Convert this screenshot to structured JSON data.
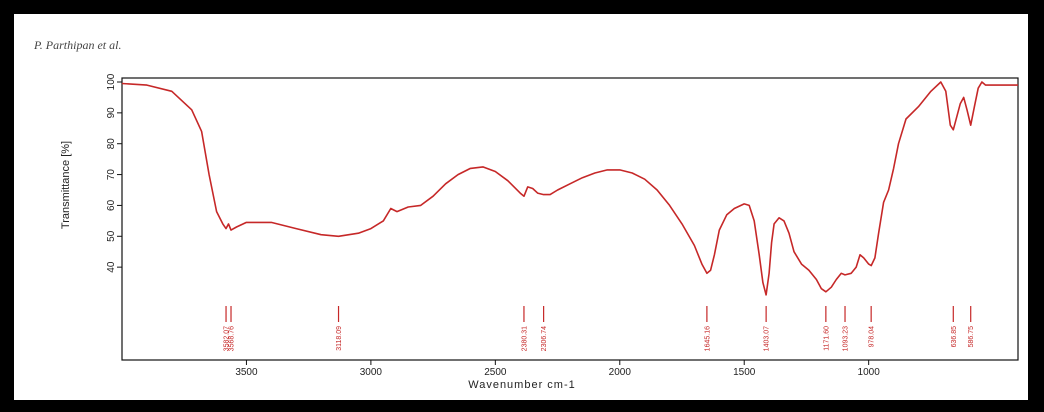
{
  "header": {
    "author": "P. Parthipan et al."
  },
  "chart_data": {
    "type": "line",
    "title": "",
    "xlabel": "Wavenumber cm-1",
    "ylabel": "Transmittance [%]",
    "xlim": [
      4000,
      400
    ],
    "x_reversed": true,
    "ylim": [
      30,
      100
    ],
    "xticks": [
      3500,
      3000,
      2500,
      2000,
      1500,
      1000
    ],
    "yticks": [
      40,
      50,
      60,
      70,
      80,
      90,
      100
    ],
    "grid": false,
    "line_color": "#c62828",
    "series": [
      {
        "values_xy": [
          [
            4000,
            99.5
          ],
          [
            3900,
            99
          ],
          [
            3800,
            97
          ],
          [
            3720,
            91
          ],
          [
            3680,
            84
          ],
          [
            3650,
            70
          ],
          [
            3620,
            58
          ],
          [
            3595,
            54
          ],
          [
            3582,
            52.5
          ],
          [
            3572,
            54
          ],
          [
            3562,
            52
          ],
          [
            3540,
            53
          ],
          [
            3500,
            54.5
          ],
          [
            3400,
            54.5
          ],
          [
            3300,
            52.5
          ],
          [
            3200,
            50.5
          ],
          [
            3130,
            50
          ],
          [
            3050,
            51
          ],
          [
            3000,
            52.5
          ],
          [
            2950,
            55
          ],
          [
            2920,
            59
          ],
          [
            2895,
            58
          ],
          [
            2850,
            59.5
          ],
          [
            2800,
            60
          ],
          [
            2750,
            63
          ],
          [
            2700,
            67
          ],
          [
            2650,
            70
          ],
          [
            2600,
            72
          ],
          [
            2550,
            72.5
          ],
          [
            2500,
            71
          ],
          [
            2450,
            68
          ],
          [
            2400,
            64
          ],
          [
            2385,
            63
          ],
          [
            2370,
            66
          ],
          [
            2350,
            65.5
          ],
          [
            2330,
            64
          ],
          [
            2306,
            63.5
          ],
          [
            2280,
            63.5
          ],
          [
            2250,
            65
          ],
          [
            2200,
            67
          ],
          [
            2150,
            69
          ],
          [
            2100,
            70.5
          ],
          [
            2050,
            71.5
          ],
          [
            2000,
            71.5
          ],
          [
            1950,
            70.5
          ],
          [
            1900,
            68.5
          ],
          [
            1850,
            65
          ],
          [
            1800,
            60
          ],
          [
            1750,
            54
          ],
          [
            1700,
            47
          ],
          [
            1670,
            41
          ],
          [
            1650,
            38
          ],
          [
            1635,
            39
          ],
          [
            1620,
            44
          ],
          [
            1600,
            52
          ],
          [
            1570,
            57
          ],
          [
            1540,
            59
          ],
          [
            1500,
            60.5
          ],
          [
            1480,
            60
          ],
          [
            1460,
            55
          ],
          [
            1440,
            44
          ],
          [
            1425,
            35
          ],
          [
            1412,
            31
          ],
          [
            1400,
            38
          ],
          [
            1390,
            48
          ],
          [
            1380,
            54
          ],
          [
            1360,
            56
          ],
          [
            1340,
            55
          ],
          [
            1320,
            51
          ],
          [
            1300,
            45
          ],
          [
            1270,
            41
          ],
          [
            1240,
            39
          ],
          [
            1210,
            36
          ],
          [
            1190,
            33
          ],
          [
            1172,
            32
          ],
          [
            1150,
            33.5
          ],
          [
            1130,
            36
          ],
          [
            1110,
            38
          ],
          [
            1095,
            37.5
          ],
          [
            1070,
            38
          ],
          [
            1050,
            40
          ],
          [
            1035,
            44
          ],
          [
            1020,
            43
          ],
          [
            1000,
            41
          ],
          [
            990,
            40.5
          ],
          [
            975,
            43
          ],
          [
            960,
            51
          ],
          [
            940,
            61
          ],
          [
            920,
            65
          ],
          [
            900,
            72
          ],
          [
            880,
            80
          ],
          [
            850,
            88
          ],
          [
            800,
            92
          ],
          [
            750,
            97
          ],
          [
            710,
            100
          ],
          [
            690,
            97
          ],
          [
            672,
            86
          ],
          [
            660,
            84.5
          ],
          [
            645,
            89
          ],
          [
            632,
            93
          ],
          [
            618,
            95
          ],
          [
            605,
            91
          ],
          [
            590,
            86
          ],
          [
            575,
            92
          ],
          [
            560,
            98
          ],
          [
            545,
            100
          ],
          [
            530,
            99
          ],
          [
            400,
            99
          ]
        ]
      }
    ],
    "peaks": [
      {
        "x": 3582,
        "label": "3582.07"
      },
      {
        "x": 3562,
        "label": "3568.76"
      },
      {
        "x": 3130,
        "label": "3118.09"
      },
      {
        "x": 2385,
        "label": "2380.31"
      },
      {
        "x": 2306,
        "label": "2306.74"
      },
      {
        "x": 1650,
        "label": "1645.16"
      },
      {
        "x": 1412,
        "label": "1403.07"
      },
      {
        "x": 1172,
        "label": "1171.60"
      },
      {
        "x": 1095,
        "label": "1093.23"
      },
      {
        "x": 990,
        "label": "978.04"
      },
      {
        "x": 660,
        "label": "636.85"
      },
      {
        "x": 590,
        "label": "586.75"
      }
    ]
  }
}
